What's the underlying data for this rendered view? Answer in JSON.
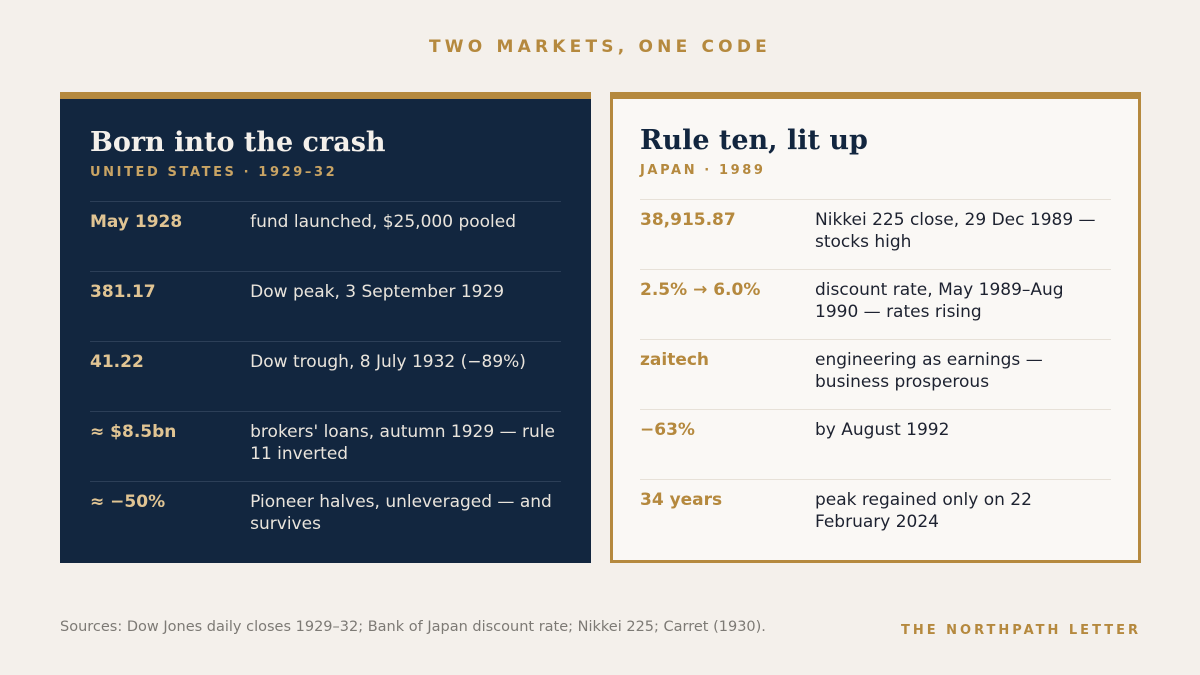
{
  "header": {
    "kicker": "TWO MARKETS, ONE CODE"
  },
  "left_panel": {
    "title": "Born into the crash",
    "subtitle": "UNITED STATES · 1929–32",
    "rows": [
      {
        "value": "May 1928",
        "desc": "fund launched, $25,000 pooled"
      },
      {
        "value": "381.17",
        "desc": "Dow peak, 3 September 1929"
      },
      {
        "value": "41.22",
        "desc": "Dow trough, 8 July 1932 (−89%)"
      },
      {
        "value": "≈ $8.5bn",
        "desc": "brokers' loans, autumn 1929 — rule 11 inverted"
      },
      {
        "value": "≈ −50%",
        "desc": "Pioneer halves, unleveraged — and survives"
      }
    ]
  },
  "right_panel": {
    "title": "Rule ten, lit up",
    "subtitle": "JAPAN · 1989",
    "rows": [
      {
        "value": "38,915.87",
        "desc": "Nikkei 225 close, 29 Dec 1989 — stocks high"
      },
      {
        "value": "2.5% → 6.0%",
        "desc": "discount rate, May 1989–Aug 1990 — rates rising"
      },
      {
        "value": "zaitech",
        "desc": "engineering as earnings — business prosperous"
      },
      {
        "value": "−63%",
        "desc": "by August 1992"
      },
      {
        "value": "34 years",
        "desc": "peak regained only on 22 February 2024"
      }
    ]
  },
  "footer": {
    "sources": "Sources: Dow Jones daily closes 1929–32; Bank of Japan discount rate; Nikkei 225; Carret (1930).",
    "brand": "THE NORTHPATH LETTER"
  },
  "colors": {
    "background": "#f4f0eb",
    "navy": "#12263f",
    "gold": "#b5893e",
    "card": "#faf8f5"
  }
}
